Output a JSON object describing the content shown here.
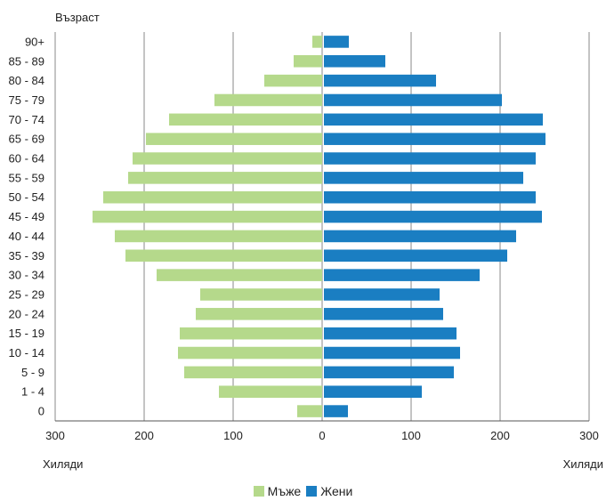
{
  "chart_data": {
    "type": "bar",
    "orientation": "horizontal",
    "layout": "population-pyramid",
    "ylabel": "Възраст",
    "xlabel_left": "Хиляди",
    "xlabel_right": "Хиляди",
    "xlim": [
      -300,
      300
    ],
    "x_ticks": [
      {
        "value": -300,
        "label": "300"
      },
      {
        "value": -200,
        "label": "200"
      },
      {
        "value": -100,
        "label": "100"
      },
      {
        "value": 0,
        "label": "0"
      },
      {
        "value": 100,
        "label": "100"
      },
      {
        "value": 200,
        "label": "200"
      },
      {
        "value": 300,
        "label": "300"
      }
    ],
    "grid": "vertical",
    "legend_position": "bottom",
    "categories": [
      "90+",
      "85 - 89",
      "80 - 84",
      "75 - 79",
      "70 - 74",
      "65 - 69",
      "60 - 64",
      "55 - 59",
      "50 - 54",
      "45 - 49",
      "40 - 44",
      "35 - 39",
      "30 - 34",
      "25 - 29",
      "20 - 24",
      "15 - 19",
      "10 - 14",
      "5 - 9",
      "1 - 4",
      "0"
    ],
    "series": [
      {
        "name": "Мъже",
        "color": "#b5d98b",
        "side": "left",
        "values": [
          11,
          32,
          65,
          121,
          172,
          198,
          213,
          218,
          246,
          258,
          233,
          221,
          186,
          137,
          142,
          160,
          162,
          155,
          116,
          28
        ]
      },
      {
        "name": "Жени",
        "color": "#1a7ec2",
        "side": "right",
        "values": [
          30,
          71,
          128,
          202,
          248,
          251,
          240,
          226,
          240,
          247,
          218,
          208,
          177,
          132,
          136,
          151,
          155,
          148,
          112,
          29
        ]
      }
    ]
  }
}
